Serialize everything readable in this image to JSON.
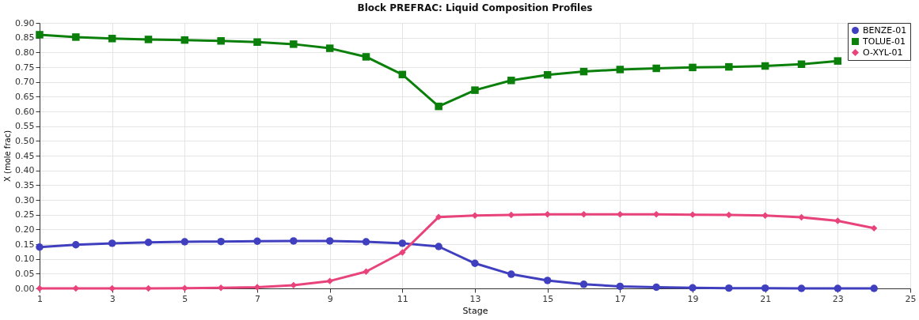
{
  "chart_data": {
    "type": "line",
    "title": "Block PREFRAC: Liquid Composition Profiles",
    "xlabel": "Stage",
    "ylabel": "X (mole frac)",
    "x": [
      1,
      2,
      3,
      4,
      5,
      6,
      7,
      8,
      9,
      10,
      11,
      12,
      13,
      14,
      15,
      16,
      17,
      18,
      19,
      20,
      21,
      22,
      23,
      24
    ],
    "xlim": [
      1,
      25
    ],
    "xticks": [
      1,
      3,
      5,
      7,
      9,
      11,
      13,
      15,
      17,
      19,
      21,
      23,
      25
    ],
    "ylim": [
      0,
      0.9
    ],
    "yticks": [
      {
        "value": 0,
        "label": "0.00"
      },
      {
        "value": 0.05,
        "label": "0.05"
      },
      {
        "value": 0.1,
        "label": "0.10"
      },
      {
        "value": 0.15,
        "label": "0.15"
      },
      {
        "value": 0.2,
        "label": "0.20"
      },
      {
        "value": 0.25,
        "label": "0.25"
      },
      {
        "value": 0.3,
        "label": "0.30"
      },
      {
        "value": 0.35,
        "label": "0.35"
      },
      {
        "value": 0.4,
        "label": "0.40"
      },
      {
        "value": 0.45,
        "label": "0.45"
      },
      {
        "value": 0.5,
        "label": "0.50"
      },
      {
        "value": 0.55,
        "label": "0.55"
      },
      {
        "value": 0.6,
        "label": "0.60"
      },
      {
        "value": 0.65,
        "label": "0.65"
      },
      {
        "value": 0.7,
        "label": "0.70"
      },
      {
        "value": 0.75,
        "label": "0.75"
      },
      {
        "value": 0.8,
        "label": "0.80"
      },
      {
        "value": 0.85,
        "label": "0.85"
      },
      {
        "value": 0.9,
        "label": "0.90"
      }
    ],
    "grid": true,
    "legend": "top right",
    "line_style": "solid",
    "series": [
      {
        "name": "BENZE-01",
        "color": "#3f3fbf",
        "marker": "circle",
        "values": [
          0.14,
          0.148,
          0.153,
          0.156,
          0.158,
          0.159,
          0.16,
          0.161,
          0.161,
          0.158,
          0.153,
          0.142,
          0.085,
          0.048,
          0.027,
          0.014,
          0.007,
          0.004,
          0.002,
          0.001,
          0.001,
          0.0,
          0.0,
          0.0
        ]
      },
      {
        "name": "TOLUE-01",
        "color": "#0a7f0a",
        "marker": "square",
        "values": [
          0.86,
          0.852,
          0.847,
          0.844,
          0.842,
          0.839,
          0.835,
          0.828,
          0.814,
          0.785,
          0.725,
          0.617,
          0.672,
          0.705,
          0.724,
          0.735,
          0.742,
          0.746,
          0.749,
          0.751,
          0.754,
          0.76,
          0.771,
          null
        ]
      },
      {
        "name": "O-XYL-01",
        "color": "#e8437a",
        "marker": "diamond",
        "values": [
          0.0,
          0.0,
          0.0,
          0.0,
          0.001,
          0.002,
          0.004,
          0.011,
          0.025,
          0.057,
          0.122,
          0.242,
          0.247,
          0.249,
          0.251,
          0.251,
          0.251,
          0.251,
          0.25,
          0.249,
          0.247,
          0.241,
          0.229,
          0.204
        ]
      }
    ]
  }
}
